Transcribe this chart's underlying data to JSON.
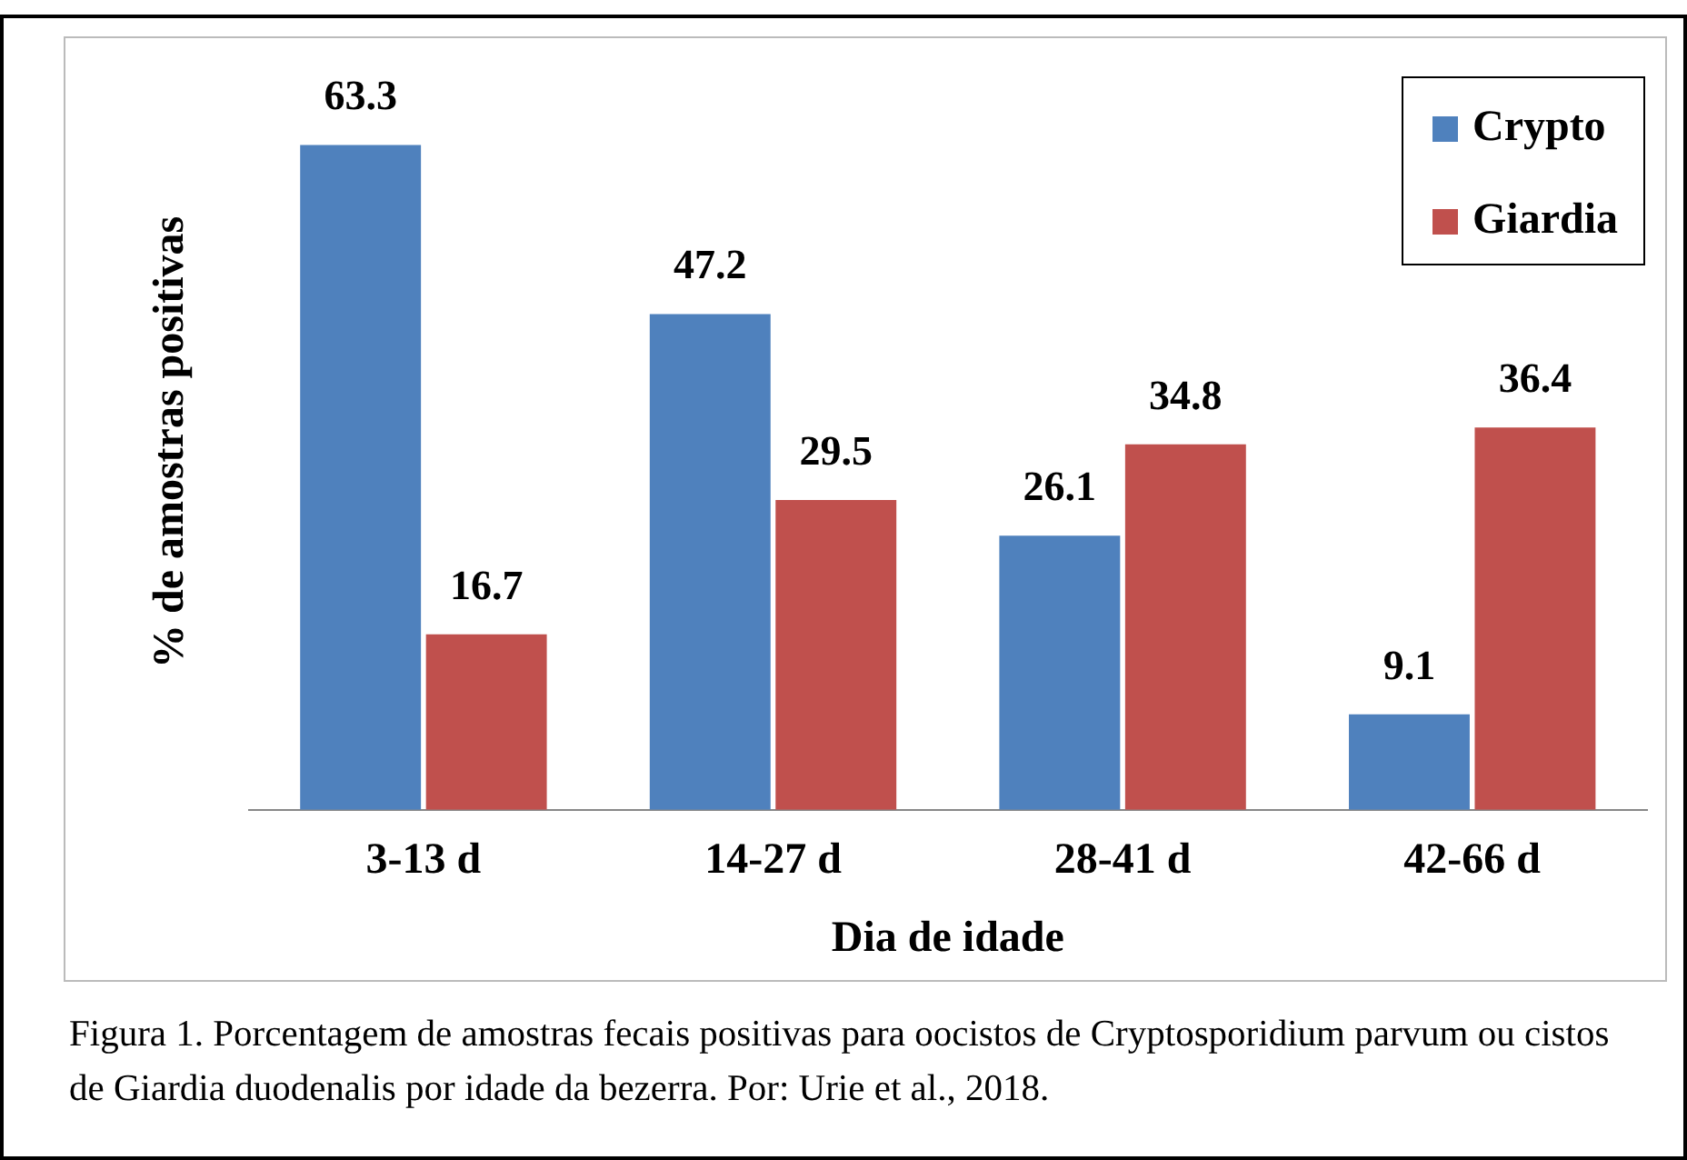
{
  "chart_data": {
    "type": "bar",
    "ylabel": "% de amostras positivas",
    "xlabel": "Dia de idade",
    "categories": [
      "3-13 d",
      "14-27 d",
      "28-41 d",
      "42-66 d"
    ],
    "series": [
      {
        "name": "Crypto",
        "color": "#4f81bd",
        "values": [
          63.3,
          47.2,
          26.1,
          9.1
        ]
      },
      {
        "name": "Giardia",
        "color": "#c0504d",
        "values": [
          16.7,
          29.5,
          34.8,
          36.4
        ]
      }
    ],
    "ylim": [
      0,
      70
    ],
    "tick_labels": "x",
    "grid": false,
    "legend": "top right",
    "data_labels": true,
    "annotations": [
      "Figura 1. Porcentagem de amostras fecais positivas para oocistos de Cryptosporidium parvum ou cistos de Giardia duodenalis por idade da bezerra. Por: Urie et al., 2018."
    ]
  }
}
